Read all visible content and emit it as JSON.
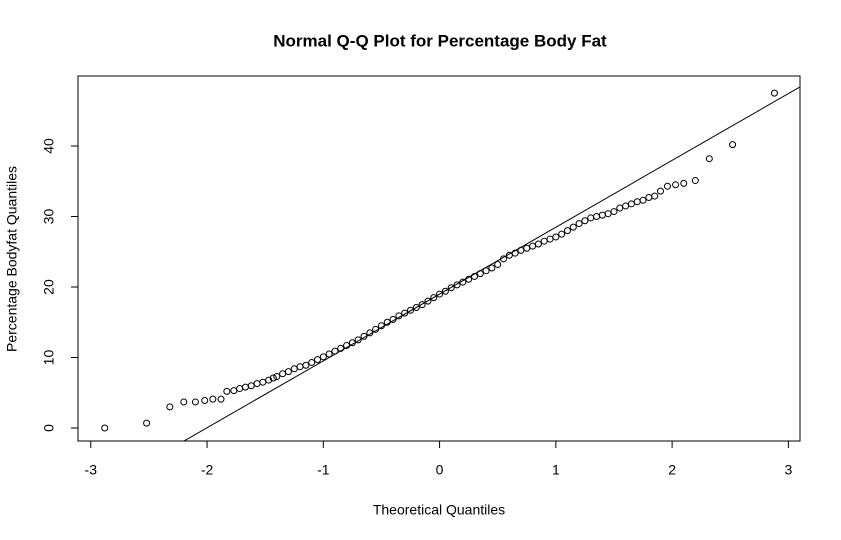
{
  "chart_data": {
    "type": "scatter",
    "title": "Normal Q-Q Plot for Percentage Body Fat",
    "x_label": "Theoretical Quantiles",
    "y_label": "Percentage Bodyfat Quantiles",
    "color": "#000000",
    "xlim": [
      -3.11,
      3.1
    ],
    "ylim": [
      -1.84,
      49.93
    ],
    "xticks": [
      -3,
      -2,
      -1,
      0,
      1,
      2,
      3
    ],
    "yticks": [
      0,
      10,
      20,
      30,
      40
    ],
    "abline": {
      "intercept": 19.0,
      "slope": 9.48
    },
    "x": [
      -2.88,
      -2.52,
      -2.32,
      -2.2,
      -2.1,
      -2.02,
      -1.95,
      -1.88,
      -1.83,
      -1.77,
      -1.72,
      -1.67,
      -1.62,
      -1.57,
      -1.52,
      -1.47,
      -1.43,
      -1.4,
      -1.35,
      -1.3,
      -1.25,
      -1.2,
      -1.15,
      -1.1,
      -1.05,
      -1.0,
      -0.95,
      -0.9,
      -0.85,
      -0.8,
      -0.75,
      -0.7,
      -0.65,
      -0.6,
      -0.55,
      -0.5,
      -0.45,
      -0.4,
      -0.35,
      -0.3,
      -0.25,
      -0.2,
      -0.15,
      -0.1,
      -0.05,
      0,
      0.05,
      0.1,
      0.15,
      0.2,
      0.25,
      0.3,
      0.35,
      0.4,
      0.45,
      0.5,
      0.55,
      0.6,
      0.65,
      0.7,
      0.75,
      0.8,
      0.85,
      0.9,
      0.95,
      1.0,
      1.05,
      1.1,
      1.15,
      1.2,
      1.25,
      1.3,
      1.35,
      1.4,
      1.45,
      1.5,
      1.55,
      1.6,
      1.65,
      1.7,
      1.75,
      1.8,
      1.85,
      1.9,
      1.96,
      2.03,
      2.1,
      2.2,
      2.32,
      2.52,
      2.88
    ],
    "values": [
      0.0,
      0.7,
      3.0,
      3.7,
      3.7,
      3.9,
      4.1,
      4.1,
      5.2,
      5.3,
      5.6,
      5.8,
      6.0,
      6.3,
      6.5,
      6.8,
      7.1,
      7.3,
      7.7,
      8.0,
      8.4,
      8.7,
      8.9,
      9.3,
      9.7,
      10.1,
      10.5,
      10.9,
      11.3,
      11.7,
      12.1,
      12.5,
      13.0,
      13.5,
      14.0,
      14.5,
      15.0,
      15.4,
      15.9,
      16.3,
      16.7,
      17.1,
      17.5,
      18.0,
      18.5,
      19.0,
      19.4,
      19.9,
      20.3,
      20.7,
      21.1,
      21.5,
      21.9,
      22.3,
      22.7,
      23.2,
      24.0,
      24.5,
      24.8,
      25.2,
      25.5,
      25.8,
      26.1,
      26.5,
      26.8,
      27.1,
      27.5,
      28.0,
      28.5,
      29.0,
      29.4,
      29.8,
      30.0,
      30.2,
      30.4,
      30.7,
      31.2,
      31.5,
      31.8,
      32.1,
      32.3,
      32.7,
      32.9,
      33.6,
      34.3,
      34.5,
      34.7,
      35.1,
      38.2,
      40.2,
      47.5
    ]
  }
}
